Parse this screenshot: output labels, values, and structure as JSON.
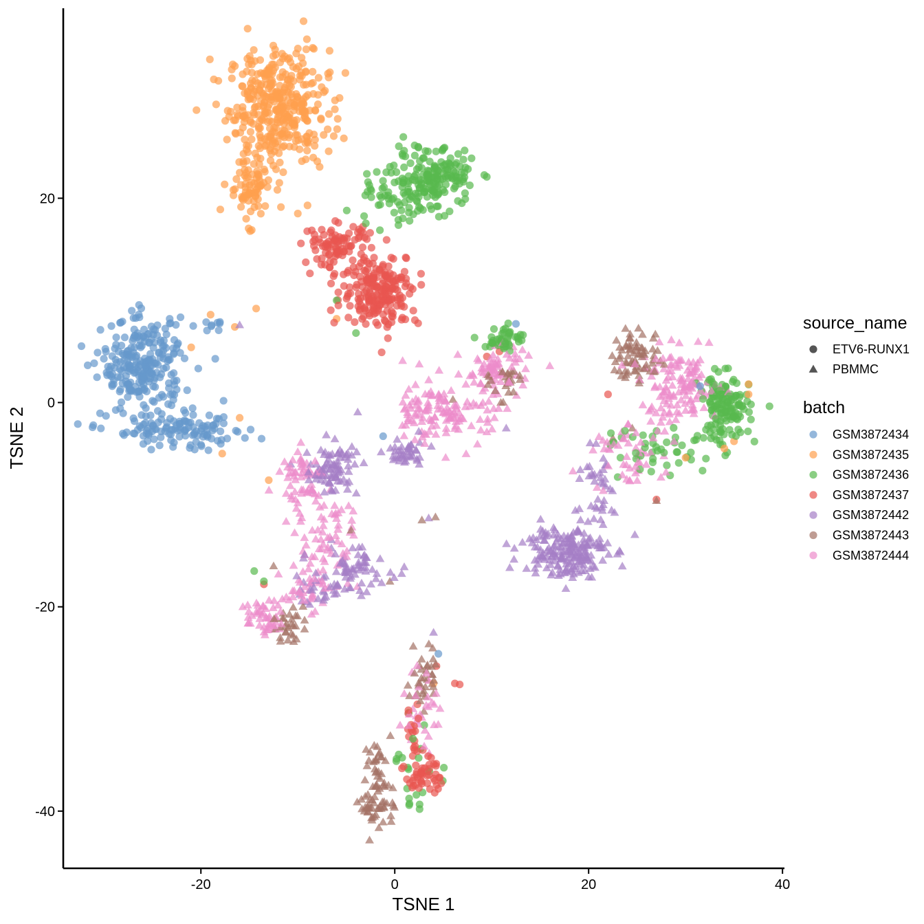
{
  "chart_data": {
    "type": "scatter",
    "title": "",
    "xlabel": "TSNE 1",
    "ylabel": "TSNE 2",
    "xlim": [
      -34.2,
      40.2
    ],
    "ylim": [
      -45.6,
      38.6
    ],
    "x_ticks": [
      -20,
      0,
      20,
      40
    ],
    "y_ticks": [
      20,
      0,
      -20,
      -40
    ],
    "x_tick_labels": [
      "-20",
      "0",
      "20",
      "40"
    ],
    "y_tick_labels": [
      "20",
      "0",
      "-20",
      "-40"
    ],
    "grid": false,
    "legend_position": "right",
    "shape_legend": {
      "title": "source_name",
      "entries": [
        {
          "label": "ETV6-RUNX1",
          "shape": "circle"
        },
        {
          "label": "PBMMC",
          "shape": "triangle"
        }
      ]
    },
    "color_legend": {
      "title": "batch",
      "entries": [
        {
          "label": "GSM3872434",
          "color": "#6699CC"
        },
        {
          "label": "GSM3872435",
          "color": "#FFA04F"
        },
        {
          "label": "GSM3872436",
          "color": "#59B94F"
        },
        {
          "label": "GSM3872437",
          "color": "#E85550"
        },
        {
          "label": "GSM3872442",
          "color": "#A57FC6"
        },
        {
          "label": "GSM3872443",
          "color": "#A47265"
        },
        {
          "label": "GSM3872444",
          "color": "#EC8CCB"
        }
      ]
    },
    "clusters": [
      {
        "batch": 1,
        "shape": "circle",
        "cx": -12,
        "cy": 29,
        "sx": 2.6,
        "sy": 2.8,
        "n": 380
      },
      {
        "batch": 1,
        "shape": "circle",
        "cx": -15,
        "cy": 21,
        "sx": 1.2,
        "sy": 1.6,
        "n": 80
      },
      {
        "batch": 2,
        "shape": "circle",
        "cx": 4,
        "cy": 22,
        "sx": 2.1,
        "sy": 1.4,
        "n": 170
      },
      {
        "batch": 2,
        "shape": "circle",
        "cx": -0.5,
        "cy": 19.5,
        "sx": 2.4,
        "sy": 1.1,
        "n": 50
      },
      {
        "batch": 3,
        "shape": "circle",
        "cx": -6,
        "cy": 15.3,
        "sx": 1.7,
        "sy": 1.1,
        "n": 90
      },
      {
        "batch": 3,
        "shape": "circle",
        "cx": -1.5,
        "cy": 11,
        "sx": 2.0,
        "sy": 1.8,
        "n": 210
      },
      {
        "batch": 0,
        "shape": "circle",
        "cx": -26,
        "cy": 3.5,
        "sx": 2.1,
        "sy": 2.3,
        "n": 260
      },
      {
        "batch": 0,
        "shape": "circle",
        "cx": -22,
        "cy": -2.8,
        "sx": 3.6,
        "sy": 0.9,
        "n": 120
      },
      {
        "batch": 0,
        "shape": "circle",
        "cx": -18.5,
        "cy": 7.5,
        "sx": 0.7,
        "sy": 0.3,
        "n": 8
      },
      {
        "batch": 2,
        "shape": "circle",
        "cx": 34,
        "cy": -0.5,
        "sx": 1.3,
        "sy": 1.6,
        "n": 140
      },
      {
        "batch": 2,
        "shape": "circle",
        "cx": 28,
        "cy": -4.5,
        "sx": 2.8,
        "sy": 1.2,
        "n": 45
      },
      {
        "batch": 2,
        "shape": "circle",
        "cx": 11.3,
        "cy": 6.2,
        "sx": 1.0,
        "sy": 0.6,
        "n": 45
      },
      {
        "batch": 5,
        "shape": "triangle",
        "cx": 25,
        "cy": 4.5,
        "sx": 1.3,
        "sy": 1.3,
        "n": 70
      },
      {
        "batch": 6,
        "shape": "triangle",
        "cx": 29.5,
        "cy": 1.5,
        "sx": 2.0,
        "sy": 1.8,
        "n": 130
      },
      {
        "batch": 6,
        "shape": "triangle",
        "cx": 24,
        "cy": -5,
        "sx": 1.8,
        "sy": 1.8,
        "n": 50
      },
      {
        "batch": 4,
        "shape": "triangle",
        "cx": 17.5,
        "cy": -14.5,
        "sx": 2.2,
        "sy": 1.3,
        "n": 190
      },
      {
        "batch": 4,
        "shape": "triangle",
        "cx": 21,
        "cy": -8.5,
        "sx": 1.3,
        "sy": 2.0,
        "n": 40
      },
      {
        "batch": 6,
        "shape": "triangle",
        "cx": 6,
        "cy": -1,
        "sx": 2.2,
        "sy": 1.6,
        "n": 110
      },
      {
        "batch": 6,
        "shape": "triangle",
        "cx": 10.5,
        "cy": 3.5,
        "sx": 1.4,
        "sy": 1.0,
        "n": 60
      },
      {
        "batch": 5,
        "shape": "triangle",
        "cx": 11.5,
        "cy": 2.2,
        "sx": 0.8,
        "sy": 0.9,
        "n": 25
      },
      {
        "batch": 4,
        "shape": "triangle",
        "cx": 1,
        "cy": -5,
        "sx": 1.0,
        "sy": 0.8,
        "n": 40
      },
      {
        "batch": 6,
        "shape": "triangle",
        "cx": 2,
        "cy": -1,
        "sx": 1.3,
        "sy": 1.3,
        "n": 25
      },
      {
        "batch": 4,
        "shape": "triangle",
        "cx": -6.5,
        "cy": -6.5,
        "sx": 1.4,
        "sy": 1.3,
        "n": 90
      },
      {
        "batch": 6,
        "shape": "triangle",
        "cx": -9.5,
        "cy": -7.5,
        "sx": 1.3,
        "sy": 1.5,
        "n": 60
      },
      {
        "batch": 4,
        "shape": "triangle",
        "cx": -4.5,
        "cy": -16.5,
        "sx": 2.0,
        "sy": 1.2,
        "n": 70
      },
      {
        "batch": 6,
        "shape": "triangle",
        "cx": -7,
        "cy": -13.5,
        "sx": 2.0,
        "sy": 2.0,
        "n": 50
      },
      {
        "batch": 6,
        "shape": "triangle",
        "cx": -13.5,
        "cy": -21,
        "sx": 0.9,
        "sy": 0.9,
        "n": 45
      },
      {
        "batch": 6,
        "shape": "triangle",
        "cx": -9,
        "cy": -18,
        "sx": 1.2,
        "sy": 1.2,
        "n": 40
      },
      {
        "batch": 5,
        "shape": "triangle",
        "cx": -11.3,
        "cy": -21.7,
        "sx": 0.9,
        "sy": 0.8,
        "n": 30
      },
      {
        "batch": 4,
        "shape": "triangle",
        "cx": -8,
        "cy": -18.5,
        "sx": 0.8,
        "sy": 0.8,
        "n": 20
      },
      {
        "batch": 5,
        "shape": "triangle",
        "cx": -1.8,
        "cy": -39,
        "sx": 0.9,
        "sy": 1.5,
        "n": 55
      },
      {
        "batch": 5,
        "shape": "triangle",
        "cx": -1.8,
        "cy": -35,
        "sx": 0.7,
        "sy": 1.0,
        "n": 20
      },
      {
        "batch": 5,
        "shape": "triangle",
        "cx": 3,
        "cy": -26.5,
        "sx": 0.7,
        "sy": 1.7,
        "n": 35
      },
      {
        "batch": 6,
        "shape": "triangle",
        "cx": 3,
        "cy": -30,
        "sx": 0.9,
        "sy": 2.4,
        "n": 30
      },
      {
        "batch": 3,
        "shape": "circle",
        "cx": 3,
        "cy": -36.5,
        "sx": 0.9,
        "sy": 1.0,
        "n": 45
      },
      {
        "batch": 3,
        "shape": "circle",
        "cx": 2,
        "cy": -32.5,
        "sx": 0.4,
        "sy": 1.4,
        "n": 18
      },
      {
        "batch": 2,
        "shape": "circle",
        "cx": 2.5,
        "cy": -36,
        "sx": 1.4,
        "sy": 2.5,
        "n": 22
      }
    ],
    "extra_points": [
      {
        "batch": 1,
        "shape": "circle",
        "x": -19,
        "y": 8.6
      },
      {
        "batch": 1,
        "shape": "circle",
        "x": -16.5,
        "y": 7.4
      },
      {
        "batch": 1,
        "shape": "circle",
        "x": -14.3,
        "y": 9.2
      },
      {
        "batch": 1,
        "shape": "circle",
        "x": -21,
        "y": 5.4
      },
      {
        "batch": 1,
        "shape": "circle",
        "x": -16,
        "y": -1.5
      },
      {
        "batch": 1,
        "shape": "circle",
        "x": -17.8,
        "y": -5
      },
      {
        "batch": 1,
        "shape": "circle",
        "x": -13,
        "y": -7.6
      },
      {
        "batch": 1,
        "shape": "circle",
        "x": -9,
        "y": 19.3
      },
      {
        "batch": 1,
        "shape": "circle",
        "x": -10,
        "y": 18.5
      },
      {
        "batch": 1,
        "shape": "circle",
        "x": -6,
        "y": 8.2
      },
      {
        "batch": 1,
        "shape": "circle",
        "x": 36.5,
        "y": 1.8
      },
      {
        "batch": 1,
        "shape": "circle",
        "x": 36.5,
        "y": 0.8
      },
      {
        "batch": 1,
        "shape": "circle",
        "x": 35,
        "y": -3.8
      },
      {
        "batch": 1,
        "shape": "circle",
        "x": 30,
        "y": -5.4
      },
      {
        "batch": 1,
        "shape": "circle",
        "x": 34,
        "y": -4.5
      },
      {
        "batch": 1,
        "shape": "circle",
        "x": 4,
        "y": -27.5
      },
      {
        "batch": 2,
        "shape": "circle",
        "x": -4,
        "y": 6.8
      },
      {
        "batch": 2,
        "shape": "circle",
        "x": -6,
        "y": 10
      },
      {
        "batch": 2,
        "shape": "circle",
        "x": -14.5,
        "y": -16.5
      },
      {
        "batch": 2,
        "shape": "circle",
        "x": -13.5,
        "y": -17.5
      },
      {
        "batch": 2,
        "shape": "circle",
        "x": 23,
        "y": -7.3
      },
      {
        "batch": 2,
        "shape": "circle",
        "x": 22.3,
        "y": -3
      },
      {
        "batch": 3,
        "shape": "circle",
        "x": 27,
        "y": -9.5
      },
      {
        "batch": 3,
        "shape": "circle",
        "x": 22,
        "y": 0.8
      },
      {
        "batch": 3,
        "shape": "circle",
        "x": 9.5,
        "y": 4.5
      },
      {
        "batch": 3,
        "shape": "circle",
        "x": 10.8,
        "y": 5
      },
      {
        "batch": 3,
        "shape": "circle",
        "x": 6.2,
        "y": -27.5
      },
      {
        "batch": 3,
        "shape": "circle",
        "x": 6.7,
        "y": -27.6
      },
      {
        "batch": 3,
        "shape": "circle",
        "x": -13.5,
        "y": -17.8
      },
      {
        "batch": 3,
        "shape": "circle",
        "x": 4.3,
        "y": -25.8
      },
      {
        "batch": 0,
        "shape": "circle",
        "x": -1.2,
        "y": -3.3
      },
      {
        "batch": 0,
        "shape": "circle",
        "x": 4.5,
        "y": -24.6
      },
      {
        "batch": 0,
        "shape": "circle",
        "x": 31.5,
        "y": 1.6
      },
      {
        "batch": 0,
        "shape": "circle",
        "x": 12.5,
        "y": 7.7
      },
      {
        "batch": 4,
        "shape": "triangle",
        "x": -16,
        "y": 7.6
      },
      {
        "batch": 4,
        "shape": "triangle",
        "x": 3.5,
        "y": -11.3
      },
      {
        "batch": 4,
        "shape": "triangle",
        "x": 11.5,
        "y": -2.5
      },
      {
        "batch": 4,
        "shape": "triangle",
        "x": 4,
        "y": -22.5
      },
      {
        "batch": 5,
        "shape": "triangle",
        "x": 2.8,
        "y": -11.5
      },
      {
        "batch": 5,
        "shape": "triangle",
        "x": 4.2,
        "y": -11.2
      },
      {
        "batch": 5,
        "shape": "triangle",
        "x": 27,
        "y": -9.6
      },
      {
        "batch": 5,
        "shape": "triangle",
        "x": 24.5,
        "y": -2.5
      },
      {
        "batch": 5,
        "shape": "triangle",
        "x": 22.5,
        "y": -3.5
      },
      {
        "batch": 5,
        "shape": "triangle",
        "x": 6,
        "y": 0.3
      },
      {
        "batch": 5,
        "shape": "triangle",
        "x": -12.5,
        "y": -16
      },
      {
        "batch": 5,
        "shape": "triangle",
        "x": -0.5,
        "y": -17.5
      },
      {
        "batch": 5,
        "shape": "triangle",
        "x": -4.5,
        "y": -12.5
      },
      {
        "batch": 6,
        "shape": "triangle",
        "x": 16,
        "y": 3.6
      },
      {
        "batch": 6,
        "shape": "triangle",
        "x": 13.5,
        "y": 3.3
      },
      {
        "batch": 6,
        "shape": "triangle",
        "x": 6.5,
        "y": 4.7
      },
      {
        "batch": 6,
        "shape": "triangle",
        "x": -5.5,
        "y": -10.5
      },
      {
        "batch": 6,
        "shape": "triangle",
        "x": -12,
        "y": -16.8
      }
    ]
  }
}
